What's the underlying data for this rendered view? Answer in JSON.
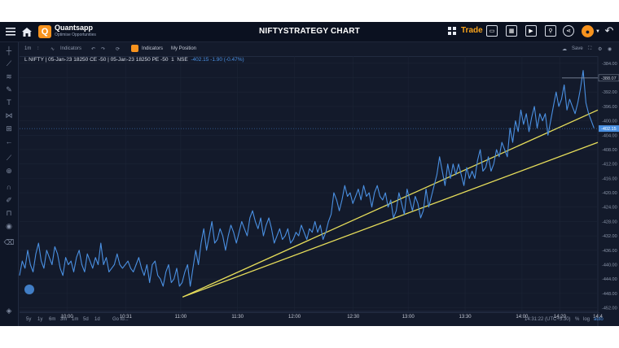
{
  "header": {
    "brand": "Quantsapp",
    "tagline": "Optimise Opportunities",
    "title": "NIFTYSTRATEGY CHART",
    "trade_label": "Trade"
  },
  "toolbar": {
    "interval": "1m",
    "indicators_label": "Indicators",
    "indicators_active_label": "Indicators",
    "my_position_label": "My Position",
    "save_label": "Save"
  },
  "legend": {
    "symbol": "L NIFTY | 05-Jan-23 18250 CE -50 | 05-Jan-23 18250 PE -50",
    "interval": "1",
    "exchange": "NSE",
    "values": "-402.15 -1.90 (-0.47%)"
  },
  "bottombar": {
    "ranges": [
      "5y",
      "1y",
      "6m",
      "3m",
      "1m",
      "5d",
      "1d"
    ],
    "goto_label": "Go to...",
    "time_label": "14:31:22 (UTC+5:30)",
    "pct_label": "%",
    "log_label": "log",
    "auto_label": "auto"
  },
  "colors": {
    "background": "#131a2b",
    "series": "#4a90e2",
    "trendline": "#e6dd5a",
    "accent": "#f7931e"
  },
  "chart_data": {
    "type": "line",
    "title": "",
    "xlabel": "",
    "ylabel": "",
    "ylim": [
      -453,
      -382
    ],
    "yticks": [
      -384,
      -388,
      -392,
      -396,
      -400,
      -404,
      -408,
      -412,
      -416,
      -420,
      -424,
      -428,
      -432,
      -436,
      -440,
      -444,
      -448,
      -452
    ],
    "ytick_labels": [
      "-384.00",
      "-388.00",
      "-392.00",
      "-396.00",
      "-400.00",
      "-404.00",
      "-408.00",
      "-412.00",
      "-416.00",
      "-420.00",
      "-424.00",
      "-428.00",
      "-432.00",
      "-436.00",
      "-440.00",
      "-444.00",
      "-448.00",
      "-452.00"
    ],
    "xticks": [
      {
        "t": 600,
        "label": "10:00"
      },
      {
        "t": 631,
        "label": "10:31"
      },
      {
        "t": 660,
        "label": "11:00"
      },
      {
        "t": 690,
        "label": "11:30"
      },
      {
        "t": 720,
        "label": "12:00"
      },
      {
        "t": 751,
        "label": "12:30"
      },
      {
        "t": 780,
        "label": "13:00"
      },
      {
        "t": 810,
        "label": "13:30"
      },
      {
        "t": 840,
        "label": "14:00"
      },
      {
        "t": 860,
        "label": "14:20"
      },
      {
        "t": 880,
        "label": "14:4"
      }
    ],
    "x_start": 575,
    "x_end": 880,
    "last_value_label": "-402.15",
    "high_value_label": "-388.07",
    "series": [
      {
        "values": [
          -443,
          -439,
          -441,
          -436,
          -440,
          -442,
          -437,
          -434,
          -439,
          -441,
          -436,
          -438,
          -440,
          -435,
          -437,
          -441,
          -443,
          -438,
          -440,
          -439,
          -442,
          -438,
          -436,
          -440,
          -442,
          -437,
          -439,
          -441,
          -438,
          -440,
          -434,
          -440,
          -438,
          -442,
          -441,
          -440,
          -437,
          -440,
          -441,
          -440,
          -439,
          -441,
          -442,
          -440,
          -438,
          -441,
          -443,
          -440,
          -445,
          -440,
          -439,
          -443,
          -444,
          -446,
          -442,
          -440,
          -445,
          -444,
          -441,
          -446,
          -445,
          -442,
          -440,
          -446,
          -441,
          -436,
          -440,
          -434,
          -430,
          -436,
          -432,
          -428,
          -434,
          -433,
          -430,
          -432,
          -436,
          -432,
          -429,
          -431,
          -434,
          -431,
          -428,
          -430,
          -432,
          -427,
          -425,
          -428,
          -430,
          -427,
          -432,
          -429,
          -427,
          -430,
          -434,
          -432,
          -430,
          -433,
          -432,
          -430,
          -434,
          -433,
          -431,
          -432,
          -429,
          -431,
          -433,
          -430,
          -431,
          -428,
          -431,
          -429,
          -433,
          -431,
          -428,
          -426,
          -420,
          -422,
          -425,
          -422,
          -418,
          -421,
          -420,
          -423,
          -421,
          -419,
          -422,
          -418,
          -421,
          -420,
          -424,
          -420,
          -418,
          -421,
          -422,
          -420,
          -424,
          -422,
          -427,
          -425,
          -420,
          -423,
          -426,
          -419,
          -422,
          -425,
          -421,
          -423,
          -427,
          -425,
          -419,
          -424,
          -421,
          -418,
          -415,
          -410,
          -414,
          -418,
          -412,
          -416,
          -412,
          -415,
          -412,
          -415,
          -418,
          -413,
          -416,
          -414,
          -416,
          -411,
          -408,
          -414,
          -413,
          -410,
          -414,
          -412,
          -408,
          -410,
          -406,
          -408,
          -410,
          -402,
          -406,
          -400,
          -403,
          -397,
          -401,
          -398,
          -403,
          -399,
          -396,
          -402,
          -398,
          -400,
          -398,
          -404,
          -400,
          -396,
          -392,
          -396,
          -394,
          -390,
          -397,
          -394,
          -396,
          -398,
          -395,
          -391,
          -386,
          -395,
          -398,
          -400,
          -402
        ],
        "x_range": [
          575,
          878
        ]
      }
    ],
    "trendlines": [
      {
        "t1": 661,
        "y1": -449,
        "t2": 880,
        "y2": -397
      },
      {
        "t1": 661,
        "y1": -449,
        "t2": 880,
        "y2": -406
      }
    ]
  }
}
